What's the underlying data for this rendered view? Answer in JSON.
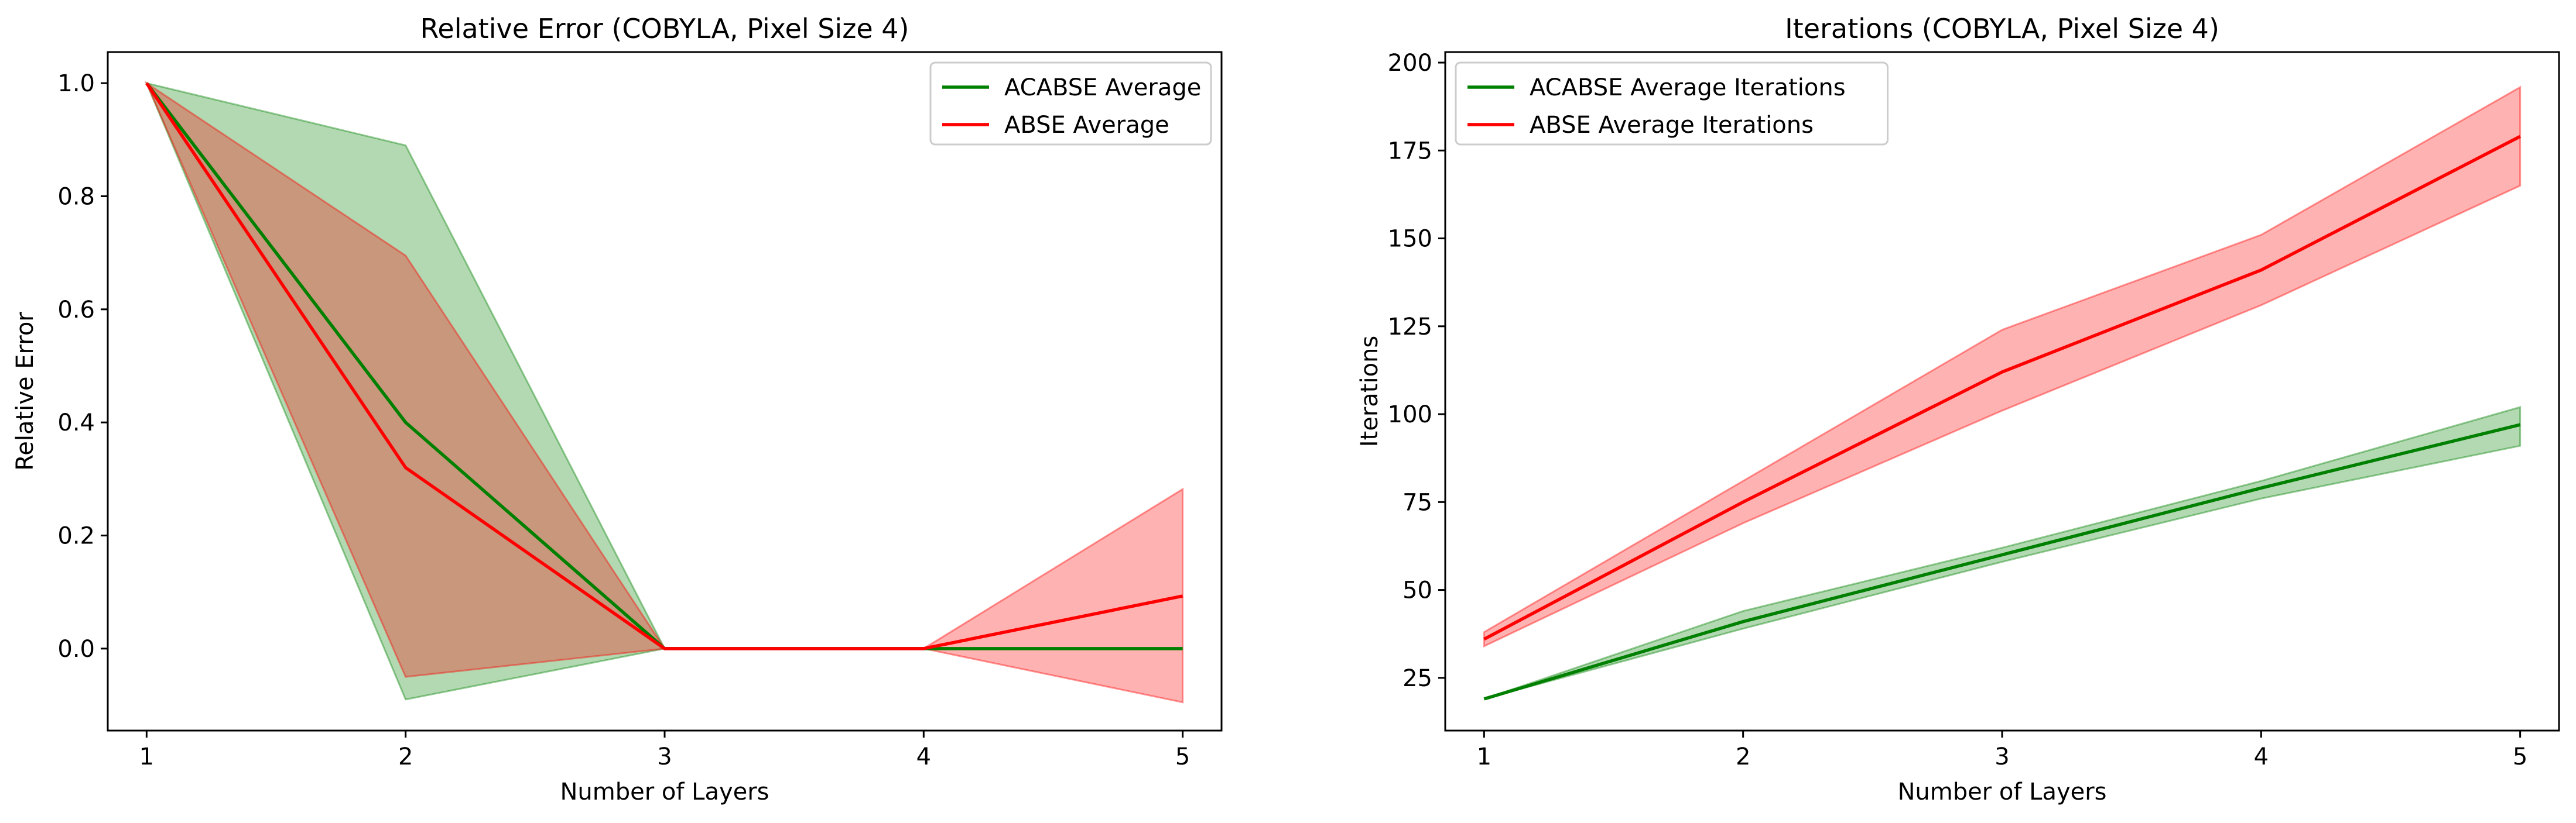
{
  "chart_data": [
    {
      "type": "line",
      "title": "Relative Error (COBYLA, Pixel Size 4)",
      "xlabel": "Number of Layers",
      "ylabel": "Relative Error",
      "x": [
        1,
        2,
        3,
        4,
        5
      ],
      "xticks": [
        "1",
        "2",
        "3",
        "4",
        "5"
      ],
      "yticks": [
        "0.0",
        "0.2",
        "0.4",
        "0.6",
        "0.8",
        "1.0"
      ],
      "xlim": [
        0.85,
        5.15
      ],
      "ylim": [
        -0.145,
        1.055
      ],
      "grid": false,
      "legend_position": "upper right",
      "series": [
        {
          "name": "ACABSE Average",
          "color": "#008000",
          "values": [
            1.0,
            0.4,
            0.0,
            0.0,
            0.0
          ],
          "band_lower": [
            1.0,
            -0.09,
            0.0,
            0.0,
            0.0
          ],
          "band_upper": [
            1.0,
            0.89,
            0.0,
            0.0,
            0.0
          ]
        },
        {
          "name": "ABSE Average",
          "color": "#ff0000",
          "values": [
            1.0,
            0.32,
            0.0,
            0.0,
            0.093
          ],
          "band_lower": [
            1.0,
            -0.05,
            0.0,
            0.0,
            -0.095
          ],
          "band_upper": [
            1.0,
            0.695,
            0.0,
            0.0,
            0.282
          ]
        }
      ]
    },
    {
      "type": "line",
      "title": "Iterations (COBYLA, Pixel Size 4)",
      "xlabel": "Number of Layers",
      "ylabel": "Iterations",
      "x": [
        1,
        2,
        3,
        4,
        5
      ],
      "xticks": [
        "1",
        "2",
        "3",
        "4",
        "5"
      ],
      "yticks": [
        "25",
        "50",
        "75",
        "100",
        "125",
        "150",
        "175",
        "200"
      ],
      "xlim": [
        0.85,
        5.15
      ],
      "ylim": [
        10,
        203
      ],
      "grid": false,
      "legend_position": "upper left",
      "series": [
        {
          "name": "ACABSE Average Iterations",
          "color": "#008000",
          "values": [
            19,
            41,
            60,
            79,
            97
          ],
          "band_lower": [
            19,
            39,
            58,
            76,
            91
          ],
          "band_upper": [
            19,
            44,
            62,
            81,
            102
          ]
        },
        {
          "name": "ABSE Average Iterations",
          "color": "#ff0000",
          "values": [
            36,
            75,
            112,
            141,
            179
          ],
          "band_lower": [
            34,
            69,
            101,
            131,
            165
          ],
          "band_upper": [
            38,
            81,
            124,
            151,
            193
          ]
        }
      ]
    }
  ]
}
